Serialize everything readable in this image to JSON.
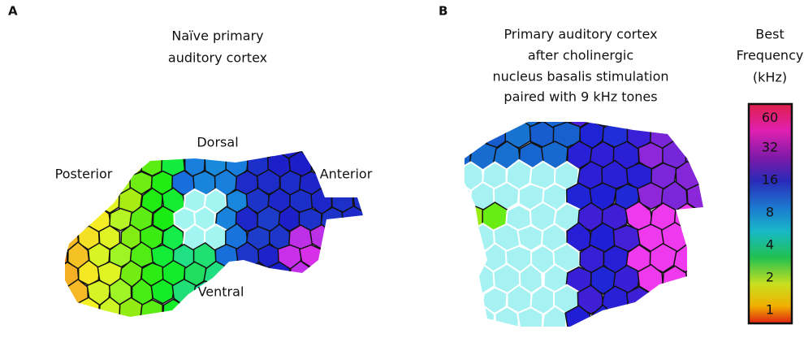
{
  "panel_a": {
    "label": "A",
    "title": [
      "Naïve primary",
      "auditory cortex"
    ],
    "directions": {
      "dorsal": "Dorsal",
      "posterior": "Posterior",
      "anterior": "Anterior",
      "ventral": "Ventral"
    }
  },
  "panel_b": {
    "label": "B",
    "title": [
      "Primary auditory cortex",
      "after cholinergic",
      "nucleus basalis stimulation",
      "paired with 9 kHz tones"
    ]
  },
  "colorbar": {
    "title": [
      "Best",
      "Frequency",
      "(kHz)"
    ],
    "ticks": [
      60,
      32,
      16,
      8,
      4,
      2,
      1
    ]
  }
}
